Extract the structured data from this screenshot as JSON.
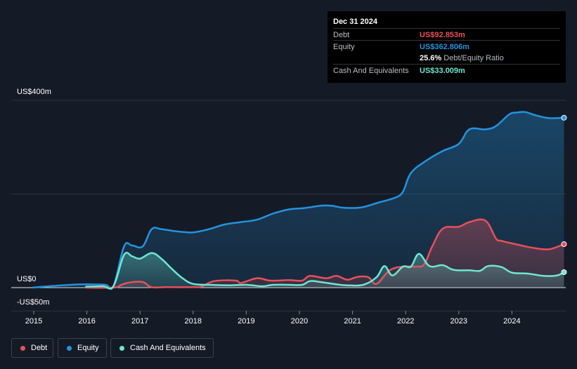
{
  "tooltip": {
    "date": "Dec 31 2024",
    "debt_label": "Debt",
    "debt_value": "US$92.853m",
    "equity_label": "Equity",
    "equity_value": "US$362.806m",
    "ratio_value": "25.6%",
    "ratio_label": "Debt/Equity Ratio",
    "cash_label": "Cash And Equivalents",
    "cash_value": "US$33.009m"
  },
  "legend": {
    "debt": "Debt",
    "equity": "Equity",
    "cash": "Cash And Equivalents"
  },
  "colors": {
    "debt": "#e8505b",
    "equity": "#2394df",
    "cash": "#6ee6d2",
    "background": "#151b26"
  },
  "chart_data": {
    "type": "area",
    "x_unit": "year",
    "y_unit": "US$ millions",
    "ylim": [
      -50,
      400
    ],
    "y_tick_labels": [
      {
        "value": 400,
        "label": "US$400m"
      },
      {
        "value": 0,
        "label": "US$0"
      },
      {
        "value": -50,
        "label": "-US$50m"
      }
    ],
    "x_ticks": [
      2015,
      2016,
      2017,
      2018,
      2019,
      2020,
      2021,
      2022,
      2023,
      2024
    ],
    "xlim": [
      2014.58,
      2024.98
    ],
    "grid": "horizontal",
    "legend_position": "bottom-left",
    "series": [
      {
        "name": "Debt",
        "color": "#e8505b",
        "points": [
          [
            2015.97,
            0
          ],
          [
            2016.5,
            0
          ],
          [
            2016.65,
            6
          ],
          [
            2016.8,
            11
          ],
          [
            2017.05,
            12
          ],
          [
            2017.22,
            1
          ],
          [
            2017.5,
            1
          ],
          [
            2018.0,
            1
          ],
          [
            2018.15,
            2
          ],
          [
            2018.4,
            14
          ],
          [
            2018.8,
            15
          ],
          [
            2018.9,
            10
          ],
          [
            2019.2,
            20
          ],
          [
            2019.45,
            15
          ],
          [
            2019.8,
            16
          ],
          [
            2020.05,
            15
          ],
          [
            2020.2,
            25
          ],
          [
            2020.5,
            20
          ],
          [
            2020.7,
            25
          ],
          [
            2020.9,
            17
          ],
          [
            2021.1,
            23
          ],
          [
            2021.3,
            22
          ],
          [
            2021.45,
            8
          ],
          [
            2021.7,
            37
          ],
          [
            2021.95,
            45
          ],
          [
            2022.2,
            45
          ],
          [
            2022.35,
            50
          ],
          [
            2022.5,
            88
          ],
          [
            2022.7,
            126
          ],
          [
            2023.0,
            130
          ],
          [
            2023.2,
            140
          ],
          [
            2023.5,
            143
          ],
          [
            2023.7,
            105
          ],
          [
            2023.8,
            100
          ],
          [
            2024.1,
            92
          ],
          [
            2024.4,
            85
          ],
          [
            2024.7,
            82
          ],
          [
            2024.98,
            92.853
          ]
        ]
      },
      {
        "name": "Equity",
        "color": "#2394df",
        "points": [
          [
            2014.98,
            0
          ],
          [
            2015.3,
            3
          ],
          [
            2015.7,
            6
          ],
          [
            2016.0,
            7
          ],
          [
            2016.35,
            6
          ],
          [
            2016.5,
            3
          ],
          [
            2016.7,
            88
          ],
          [
            2016.85,
            90
          ],
          [
            2017.05,
            88
          ],
          [
            2017.22,
            125
          ],
          [
            2017.4,
            125
          ],
          [
            2017.7,
            120
          ],
          [
            2018.0,
            118
          ],
          [
            2018.3,
            125
          ],
          [
            2018.6,
            135
          ],
          [
            2018.9,
            140
          ],
          [
            2019.2,
            145
          ],
          [
            2019.5,
            158
          ],
          [
            2019.8,
            167
          ],
          [
            2020.1,
            170
          ],
          [
            2020.4,
            175
          ],
          [
            2020.6,
            175
          ],
          [
            2020.8,
            171
          ],
          [
            2021.0,
            170
          ],
          [
            2021.2,
            172
          ],
          [
            2021.5,
            182
          ],
          [
            2021.8,
            192
          ],
          [
            2021.95,
            205
          ],
          [
            2022.1,
            245
          ],
          [
            2022.4,
            272
          ],
          [
            2022.7,
            292
          ],
          [
            2023.0,
            307
          ],
          [
            2023.2,
            338
          ],
          [
            2023.5,
            338
          ],
          [
            2023.7,
            345
          ],
          [
            2023.95,
            370
          ],
          [
            2024.1,
            374
          ],
          [
            2024.25,
            375
          ],
          [
            2024.45,
            368
          ],
          [
            2024.7,
            362
          ],
          [
            2024.98,
            362.806
          ]
        ]
      },
      {
        "name": "Cash And Equivalents",
        "color": "#6ee6d2",
        "points": [
          [
            2015.97,
            2
          ],
          [
            2016.3,
            3
          ],
          [
            2016.5,
            3
          ],
          [
            2016.7,
            70
          ],
          [
            2016.85,
            67
          ],
          [
            2017.0,
            62
          ],
          [
            2017.22,
            74
          ],
          [
            2017.4,
            62
          ],
          [
            2017.6,
            40
          ],
          [
            2017.8,
            20
          ],
          [
            2018.0,
            8
          ],
          [
            2018.3,
            6
          ],
          [
            2018.7,
            5
          ],
          [
            2019.0,
            6
          ],
          [
            2019.3,
            3
          ],
          [
            2019.5,
            6
          ],
          [
            2019.8,
            6
          ],
          [
            2020.05,
            6
          ],
          [
            2020.2,
            14
          ],
          [
            2020.4,
            12
          ],
          [
            2020.7,
            7
          ],
          [
            2020.9,
            5
          ],
          [
            2021.2,
            6
          ],
          [
            2021.45,
            22
          ],
          [
            2021.6,
            46
          ],
          [
            2021.75,
            26
          ],
          [
            2021.95,
            45
          ],
          [
            2022.1,
            45
          ],
          [
            2022.25,
            72
          ],
          [
            2022.45,
            46
          ],
          [
            2022.7,
            48
          ],
          [
            2022.9,
            38
          ],
          [
            2023.2,
            37
          ],
          [
            2023.4,
            36
          ],
          [
            2023.55,
            46
          ],
          [
            2023.8,
            44
          ],
          [
            2024.0,
            32
          ],
          [
            2024.3,
            30
          ],
          [
            2024.6,
            25
          ],
          [
            2024.85,
            26
          ],
          [
            2024.98,
            33.009
          ]
        ]
      }
    ]
  }
}
